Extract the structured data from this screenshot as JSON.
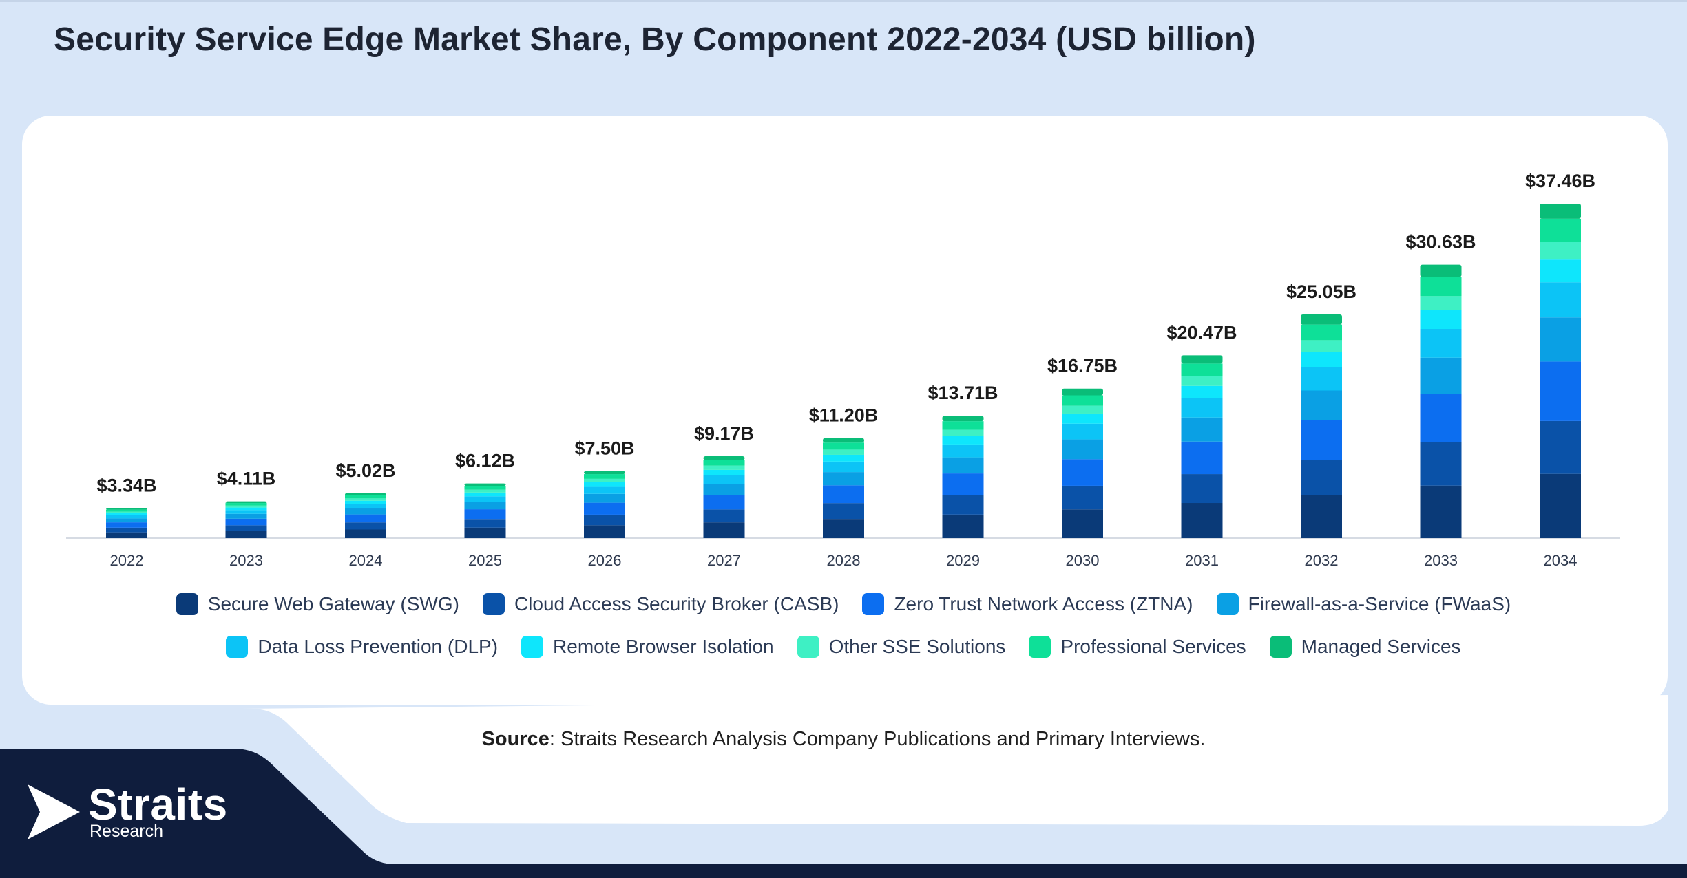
{
  "title": "Security Service Edge Market Share, By Component 2022-2034 (USD billion)",
  "source": {
    "label": "Source",
    "text": ": Straits Research Analysis Company Publications and Primary Interviews."
  },
  "logo": {
    "word": "Straits",
    "sub": "Research"
  },
  "colors": {
    "page_background": "#d8e6f8",
    "navy_band": "#0f1d3d"
  },
  "chart_data": {
    "type": "bar",
    "stacked": true,
    "categories": [
      "2022",
      "2023",
      "2024",
      "2025",
      "2026",
      "2027",
      "2028",
      "2029",
      "2030",
      "2031",
      "2032",
      "2033",
      "2034"
    ],
    "totals": [
      3.34,
      4.11,
      5.02,
      6.12,
      7.5,
      9.17,
      11.2,
      13.71,
      16.75,
      20.47,
      25.05,
      30.63,
      37.46
    ],
    "total_labels": [
      "$3.34B",
      "$4.11B",
      "$5.02B",
      "$6.12B",
      "$7.50B",
      "$9.17B",
      "$11.20B",
      "$13.71B",
      "$16.75B",
      "$20.47B",
      "$25.05B",
      "$30.63B",
      "$37.46B"
    ],
    "series": [
      {
        "name": "Secure Web Gateway (SWG)",
        "color": "#0a3a78",
        "share": 0.192
      },
      {
        "name": "Cloud Access Security Broker (CASB)",
        "color": "#0a52a8",
        "share": 0.158
      },
      {
        "name": "Zero Trust Network Access (ZTNA)",
        "color": "#0c6ef0",
        "share": 0.178
      },
      {
        "name": "Firewall-as-a-Service (FWaaS)",
        "color": "#0aa0e4",
        "share": 0.132
      },
      {
        "name": "Data Loss Prevention (DLP)",
        "color": "#0cc4f6",
        "share": 0.105
      },
      {
        "name": "Remote Browser Isolation",
        "color": "#0ee6fc",
        "share": 0.068
      },
      {
        "name": "Other SSE Solutions",
        "color": "#3ef0c4",
        "share": 0.052
      },
      {
        "name": "Professional Services",
        "color": "#0ee098",
        "share": 0.07
      },
      {
        "name": "Managed Services",
        "color": "#0abd78",
        "share": 0.045
      }
    ],
    "ylim": [
      0,
      40
    ],
    "grid": false,
    "legend_position": "bottom"
  }
}
